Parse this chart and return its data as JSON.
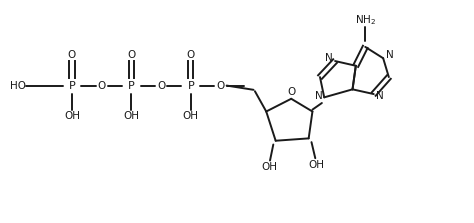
{
  "background_color": "#ffffff",
  "line_color": "#1a1a1a",
  "text_color": "#1a1a1a",
  "line_width": 1.4,
  "font_size": 7.5,
  "figsize": [
    4.74,
    2.23
  ],
  "dpi": 100,
  "xlim": [
    0,
    10
  ],
  "ylim": [
    0,
    4.7
  ]
}
